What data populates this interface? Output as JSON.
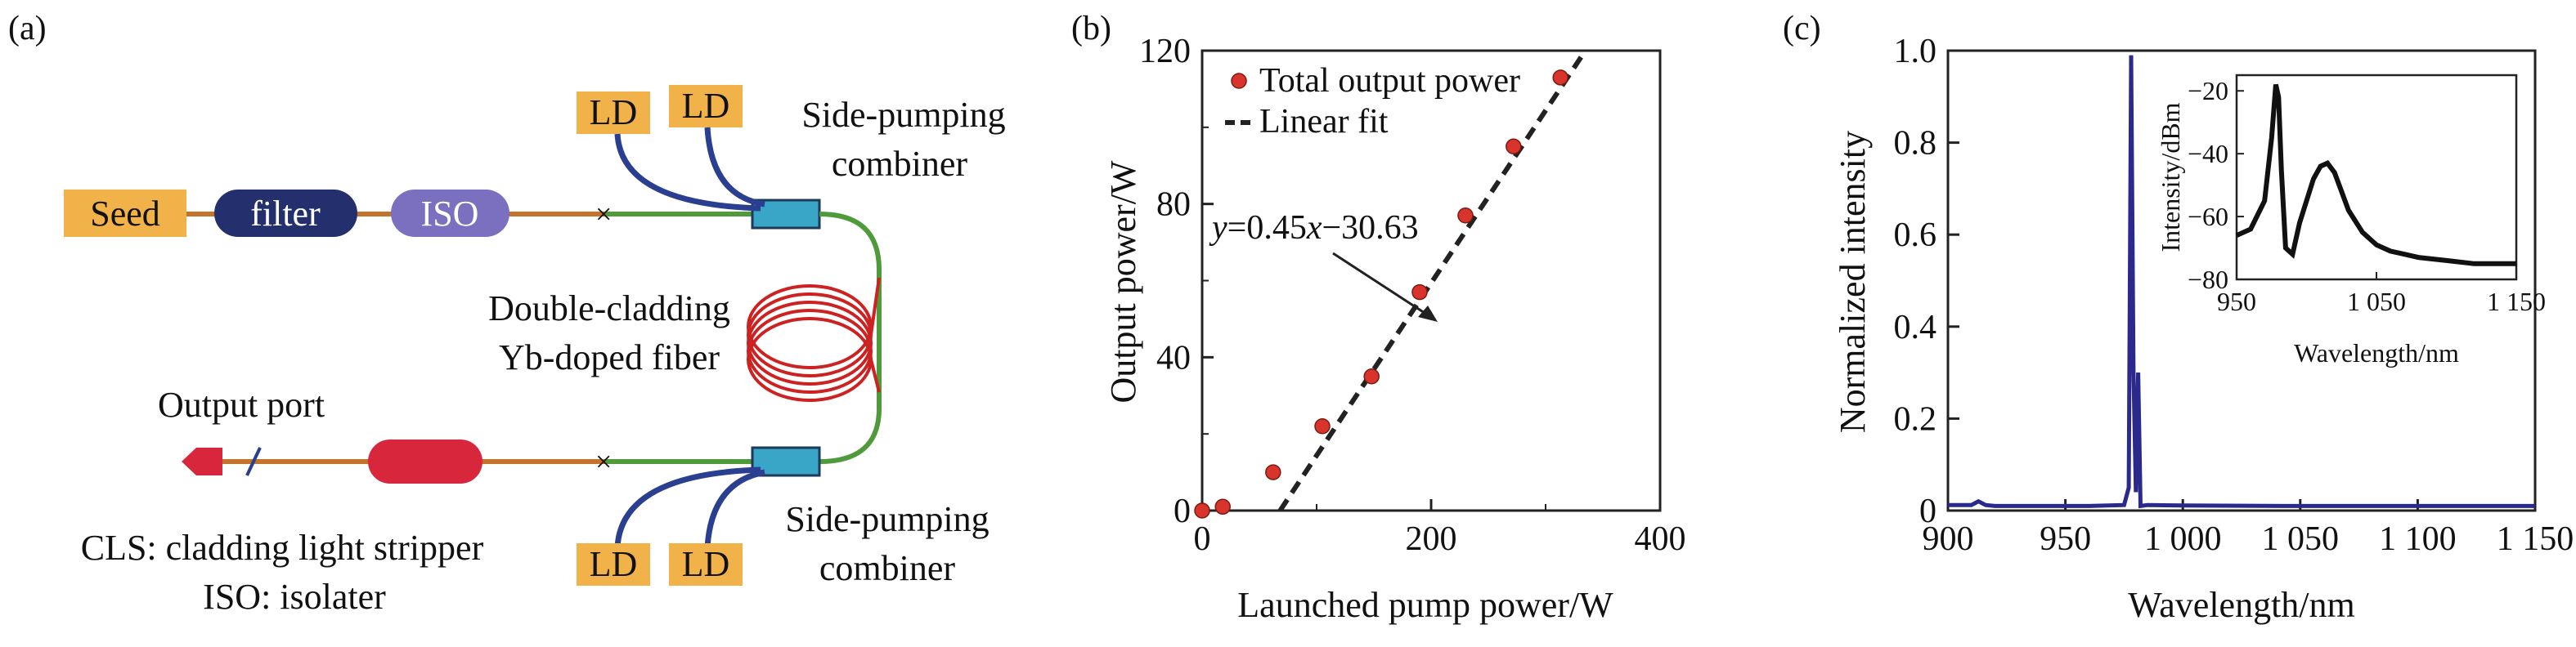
{
  "panels": {
    "a": "(a)",
    "b": "(b)",
    "c": "(c)"
  },
  "setup": {
    "seed": "Seed",
    "filter": "filter",
    "iso": "ISO",
    "ld": "LD",
    "combiner_top_l1": "Side-pumping",
    "combiner_top_l2": "combiner",
    "combiner_bot_l1": "Side-pumping",
    "combiner_bot_l2": "combiner",
    "fiber_l1": "Double-cladding",
    "fiber_l2": "Yb-doped fiber",
    "output_port": "Output port",
    "note_cls": "CLS: cladding light stripper",
    "note_iso": "ISO: isolater",
    "colors": {
      "seed_box": "#f2b24a",
      "filter_box": "#24306e",
      "iso_box": "#7b6fbf",
      "cls_box": "#d8263c",
      "fiber": "#cc2222",
      "pump_fiber": "#2a3f8f",
      "combiner": "#3aa6c7"
    }
  },
  "chart_data": [
    {
      "type": "scatter",
      "xlabel": "Launched pump power/W",
      "ylabel": "Output power/W",
      "xlim": [
        0,
        400
      ],
      "ylim": [
        0,
        120
      ],
      "xticks": [
        "0",
        "200",
        "400"
      ],
      "xminor": [
        100,
        300
      ],
      "yticks": [
        "0",
        "40",
        "80",
        "120"
      ],
      "yminor": [
        20,
        60,
        100
      ],
      "series": [
        {
          "name": "Total output power",
          "x": [
            0,
            18,
            62,
            105,
            148,
            190,
            230,
            272,
            313
          ],
          "y": [
            0,
            1,
            10,
            22,
            35,
            57,
            77,
            95,
            113
          ]
        }
      ],
      "fit": {
        "name": "Linear fit",
        "equation_pre": "y",
        "equation_mid": "=0.45",
        "equation_x": "x",
        "equation_post": "−30.63",
        "slope": 0.45,
        "intercept": -30.63
      },
      "legend": "top-left",
      "marker_color": "#d9342b"
    },
    {
      "type": "line",
      "xlabel": "Wavelength/nm",
      "ylabel": "Normalized intensity",
      "xlim": [
        900,
        1150
      ],
      "ylim": [
        0,
        1.0
      ],
      "xticks": [
        "900",
        "950",
        "1 000",
        "1 050",
        "1 100",
        "1 150"
      ],
      "yticks": [
        "0",
        "0.2",
        "0.4",
        "0.6",
        "0.8",
        "1.0"
      ],
      "spectrum": {
        "x": [
          900,
          910,
          913,
          916,
          920,
          930,
          960,
          975,
          977,
          978,
          979,
          980,
          981,
          982,
          985,
          1000,
          1050,
          1100,
          1150
        ],
        "y": [
          0.012,
          0.012,
          0.02,
          0.012,
          0.01,
          0.01,
          0.01,
          0.012,
          0.05,
          0.99,
          0.3,
          0.04,
          0.3,
          0.01,
          0.012,
          0.011,
          0.01,
          0.01,
          0.01
        ]
      },
      "line_color": "#2b2a8c",
      "inset": {
        "xlabel": "Wavelength/nm",
        "ylabel": "Intensity/dBm",
        "xlim": [
          950,
          1150
        ],
        "ylim": [
          -80,
          -15
        ],
        "xticks": [
          "950",
          "1 050",
          "1 150"
        ],
        "yticks": [
          "−20",
          "−40",
          "−60",
          "−80"
        ],
        "x": [
          950,
          960,
          970,
          975,
          978,
          980,
          982,
          985,
          990,
          995,
          1000,
          1005,
          1010,
          1015,
          1020,
          1025,
          1030,
          1040,
          1050,
          1060,
          1070,
          1080,
          1100,
          1120,
          1140,
          1150
        ],
        "y": [
          -66,
          -64,
          -55,
          -35,
          -18,
          -22,
          -45,
          -70,
          -72,
          -62,
          -55,
          -48,
          -44,
          -43,
          -46,
          -52,
          -58,
          -65,
          -69,
          -71,
          -72,
          -73,
          -74,
          -75,
          -75,
          -75
        ]
      }
    }
  ]
}
